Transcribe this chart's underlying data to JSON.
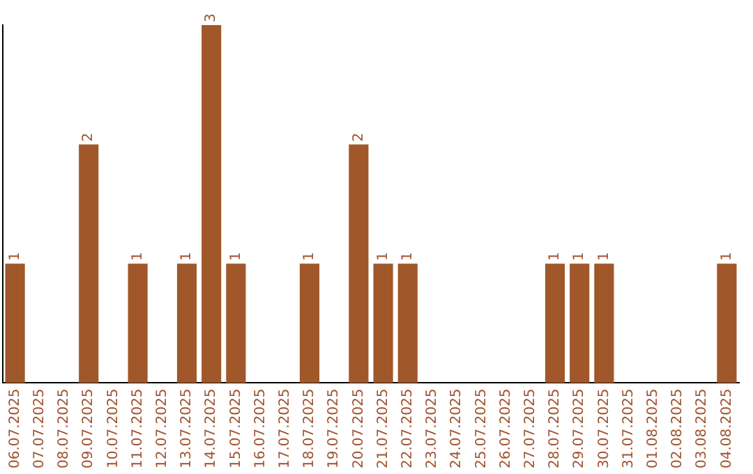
{
  "chart_data": {
    "type": "bar",
    "categories": [
      "06.07.2025",
      "07.07.2025",
      "08.07.2025",
      "09.07.2025",
      "10.07.2025",
      "11.07.2025",
      "12.07.2025",
      "13.07.2025",
      "14.07.2025",
      "15.07.2025",
      "16.07.2025",
      "17.07.2025",
      "18.07.2025",
      "19.07.2025",
      "20.07.2025",
      "21.07.2025",
      "22.07.2025",
      "23.07.2025",
      "24.07.2025",
      "25.07.2025",
      "26.07.2025",
      "27.07.2025",
      "28.07.2025",
      "29.07.2025",
      "30.07.2025",
      "31.07.2025",
      "01.08.2025",
      "02.08.2025",
      "03.08.2025",
      "04.08.2025"
    ],
    "values": [
      1,
      0,
      0,
      2,
      0,
      1,
      0,
      1,
      3,
      1,
      0,
      0,
      1,
      0,
      2,
      1,
      1,
      0,
      0,
      0,
      0,
      0,
      1,
      1,
      1,
      0,
      0,
      0,
      0,
      1
    ],
    "value_labels": [
      "1",
      null,
      null,
      "2",
      null,
      "1",
      null,
      "1",
      "3",
      "1",
      null,
      null,
      "1",
      null,
      "2",
      "1",
      "1",
      null,
      null,
      null,
      null,
      null,
      "1",
      "1",
      "1",
      null,
      null,
      null,
      null,
      "1"
    ],
    "color": "#a0572a",
    "grid": false,
    "tick_labels": "x",
    "legend": false
  }
}
